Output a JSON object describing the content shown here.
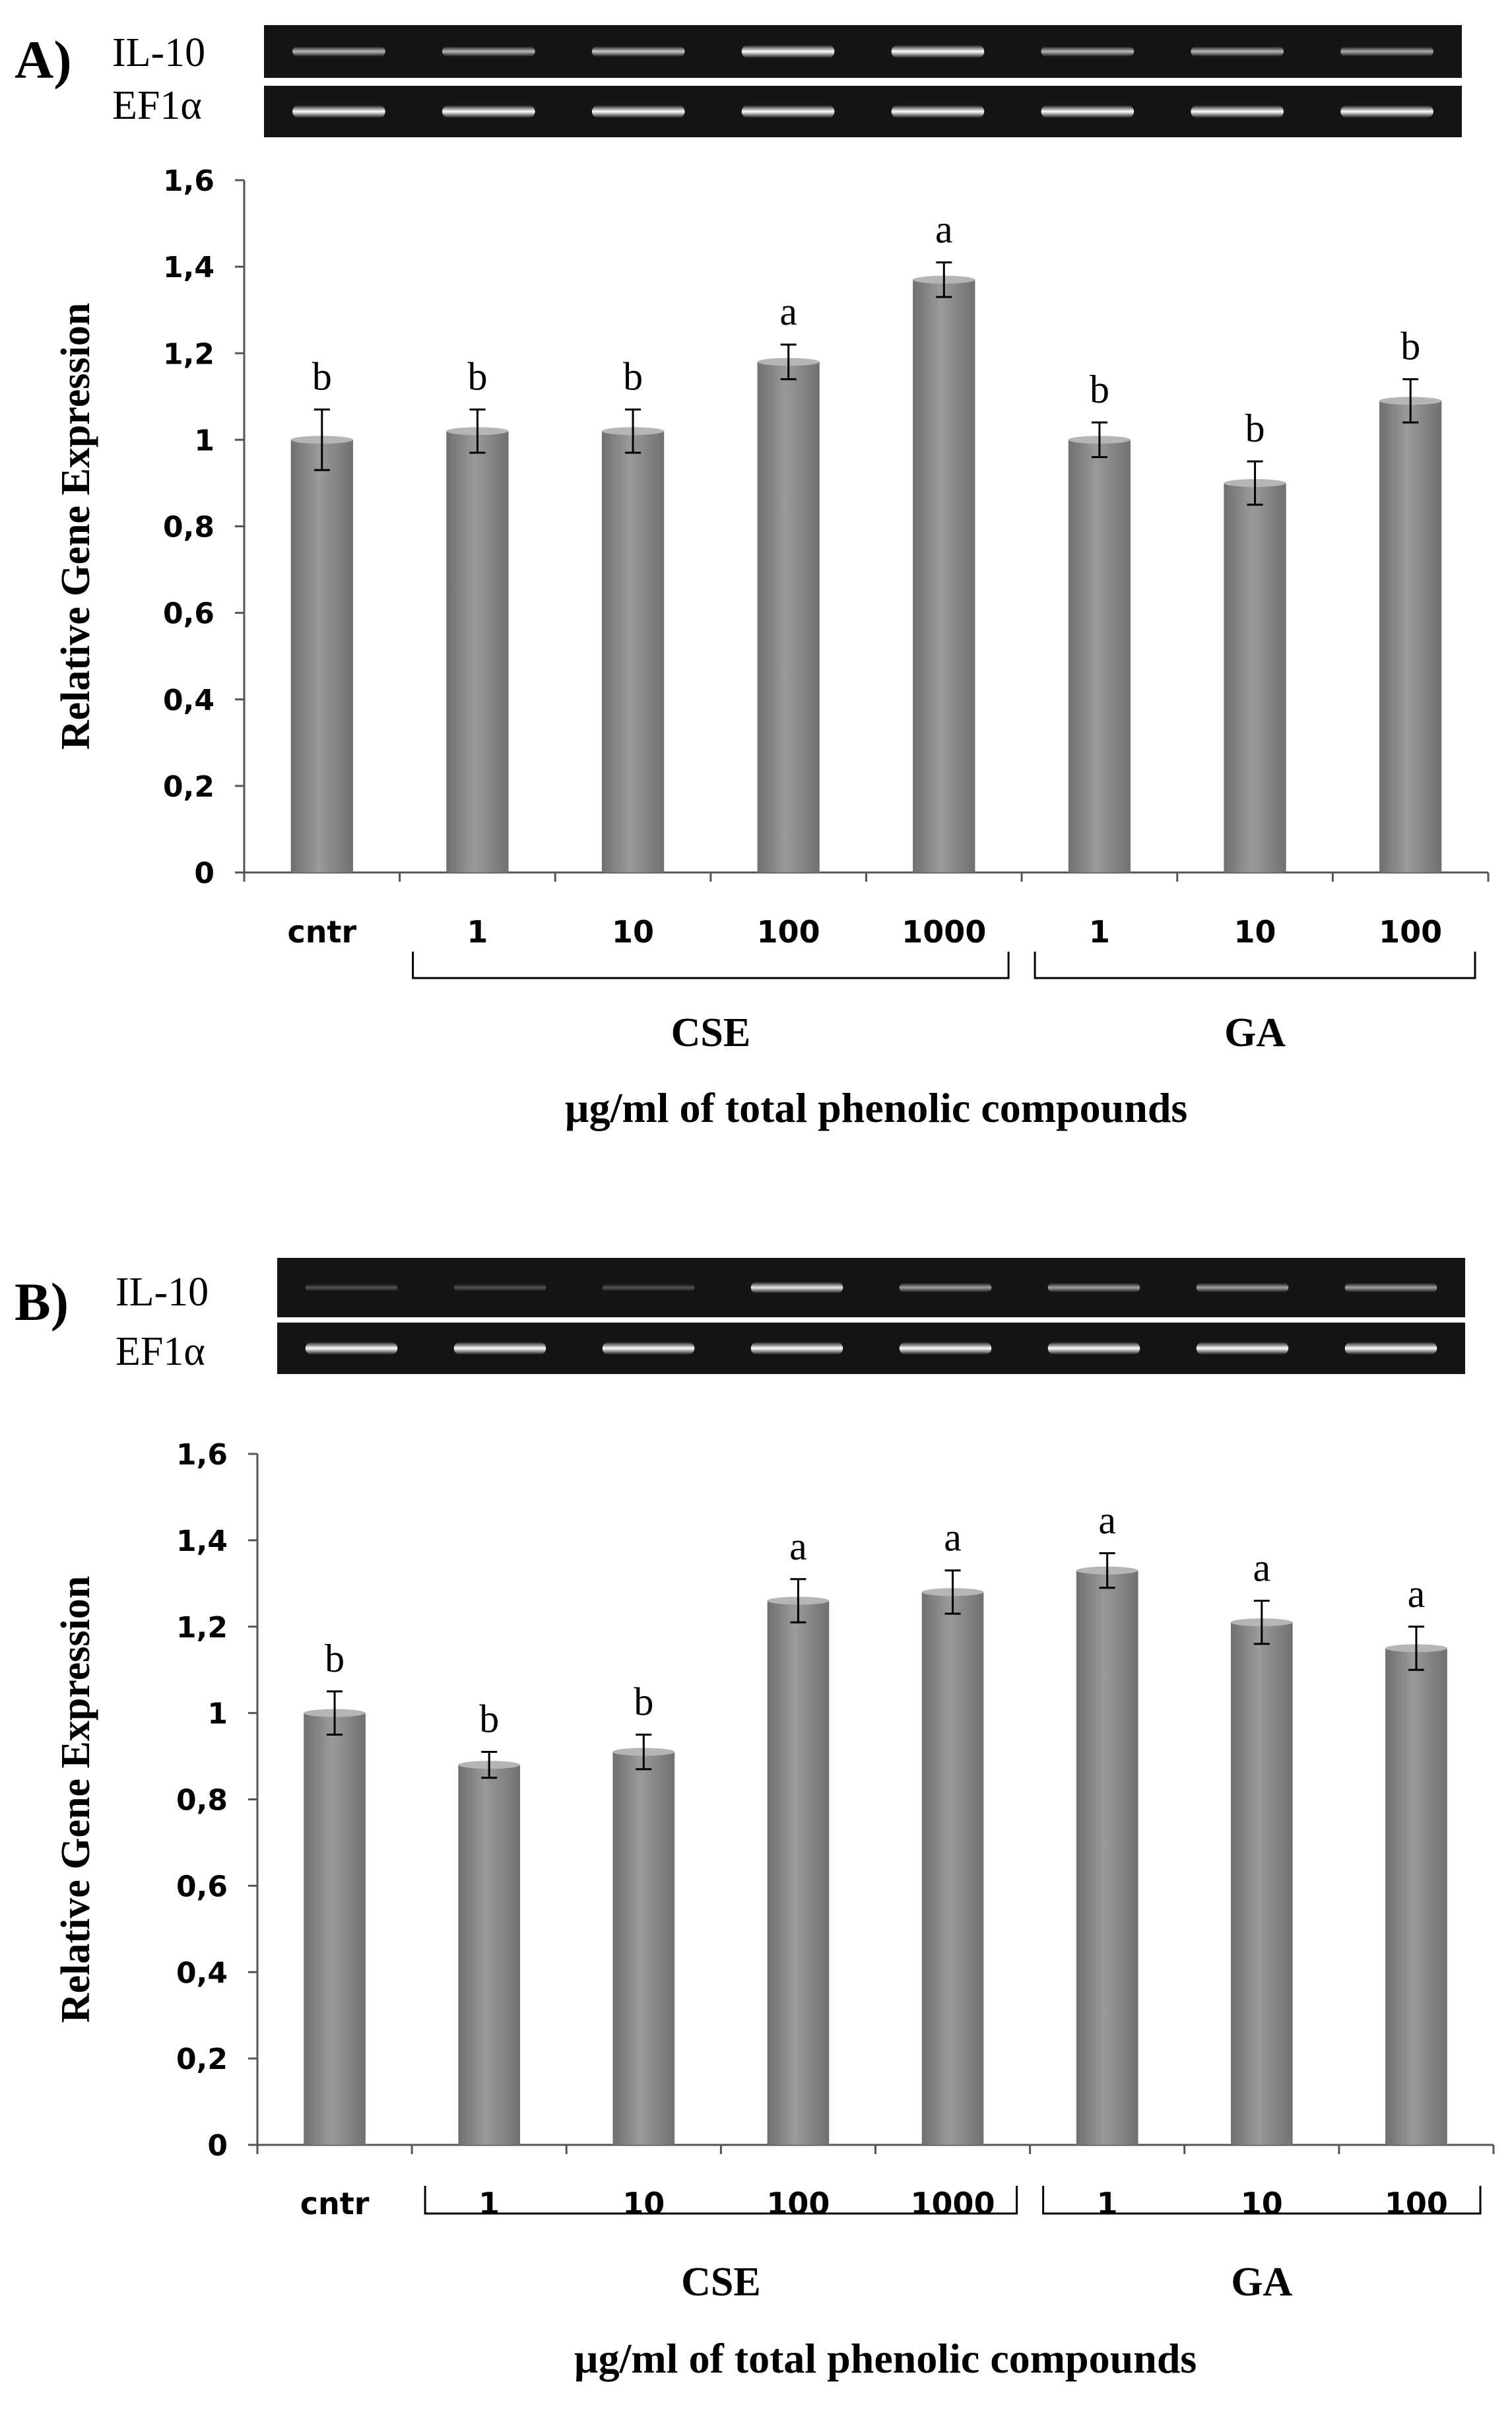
{
  "figure": {
    "panels": [
      {
        "id": "A",
        "label": "A)",
        "gel": {
          "lanes": 8,
          "rows": [
            {
              "label": "IL-10",
              "intensities": [
                0.55,
                0.55,
                0.62,
                1.0,
                1.0,
                0.55,
                0.55,
                0.5
              ]
            },
            {
              "label": "EF1α",
              "intensities": [
                0.95,
                0.95,
                0.95,
                0.95,
                0.95,
                0.95,
                0.95,
                0.9
              ]
            }
          ]
        },
        "groups": [
          {
            "name": "CSE",
            "from": 1,
            "to": 4
          },
          {
            "name": "GA",
            "from": 5,
            "to": 7
          }
        ],
        "xtitle": "µg/ml of total phenolic compounds"
      },
      {
        "id": "B",
        "label": "B)",
        "gel": {
          "lanes": 8,
          "rows": [
            {
              "label": "IL-10",
              "intensities": [
                0.12,
                0.12,
                0.12,
                0.75,
                0.45,
                0.45,
                0.45,
                0.45
              ]
            },
            {
              "label": "EF1α",
              "intensities": [
                0.95,
                0.95,
                0.95,
                0.95,
                0.95,
                0.95,
                0.95,
                0.95
              ]
            }
          ]
        },
        "groups": [
          {
            "name": "CSE",
            "from": 1,
            "to": 4
          },
          {
            "name": "GA",
            "from": 5,
            "to": 7
          }
        ],
        "xtitle": "µg/ml of total phenolic compounds"
      }
    ]
  },
  "chart_data": [
    {
      "type": "bar",
      "panel": "A",
      "title": "",
      "xlabel": "µg/ml of total phenolic compounds",
      "ylabel": "Relative Gene Expression",
      "ylim": [
        0,
        1.6
      ],
      "yticks": [
        "0",
        "0,2",
        "0,4",
        "0,6",
        "0,8",
        "1",
        "1,2",
        "1,4",
        "1,6"
      ],
      "categories": [
        "cntr",
        "1",
        "10",
        "100",
        "1000",
        "1",
        "10",
        "100"
      ],
      "values": [
        1.0,
        1.02,
        1.02,
        1.18,
        1.37,
        1.0,
        0.9,
        1.09
      ],
      "errors": [
        0.07,
        0.05,
        0.05,
        0.04,
        0.04,
        0.04,
        0.05,
        0.05
      ],
      "letters": [
        "b",
        "b",
        "b",
        "a",
        "a",
        "b",
        "b",
        "b"
      ],
      "grid": false
    },
    {
      "type": "bar",
      "panel": "B",
      "title": "",
      "xlabel": "µg/ml of total phenolic compounds",
      "ylabel": "Relative Gene Expression",
      "ylim": [
        0,
        1.6
      ],
      "yticks": [
        "0",
        "0,2",
        "0,4",
        "0,6",
        "0,8",
        "1",
        "1,2",
        "1,4",
        "1,6"
      ],
      "categories": [
        "cntr",
        "1",
        "10",
        "100",
        "1000",
        "1",
        "10",
        "100"
      ],
      "values": [
        1.0,
        0.88,
        0.91,
        1.26,
        1.28,
        1.33,
        1.21,
        1.15
      ],
      "errors": [
        0.05,
        0.03,
        0.04,
        0.05,
        0.05,
        0.04,
        0.05,
        0.05
      ],
      "letters": [
        "b",
        "b",
        "b",
        "a",
        "a",
        "a",
        "a",
        "a"
      ],
      "grid": false
    }
  ]
}
